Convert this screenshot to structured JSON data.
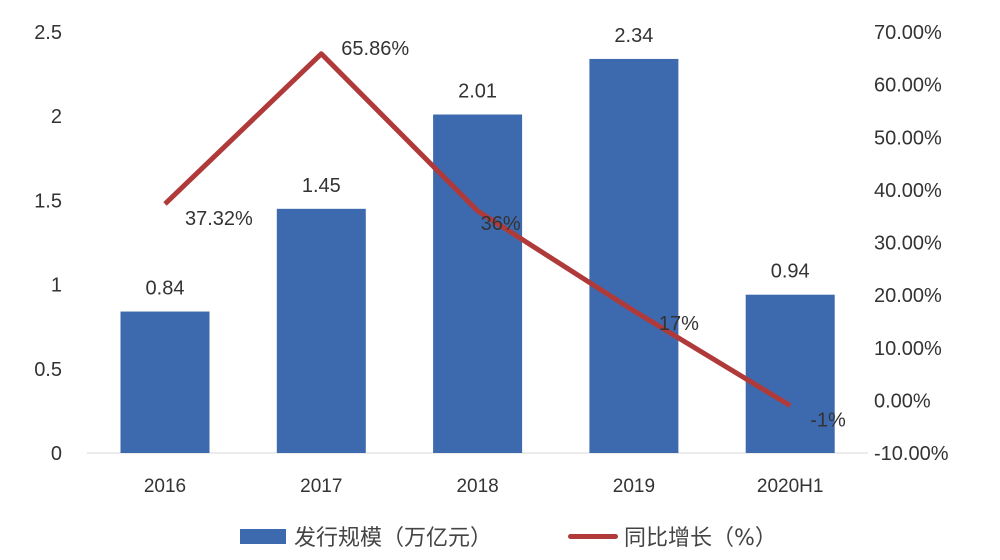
{
  "chart_data": {
    "type": "bar+line",
    "categories": [
      "2016",
      "2017",
      "2018",
      "2019",
      "2020H1"
    ],
    "series": [
      {
        "name": "发行规模（万亿元）",
        "type": "bar",
        "axis": "left",
        "values": [
          0.84,
          1.45,
          2.01,
          2.34,
          0.94
        ],
        "labels": [
          "0.84",
          "1.45",
          "2.01",
          "2.34",
          "0.94"
        ],
        "color": "#3D6AAE"
      },
      {
        "name": "同比增长（%）",
        "type": "line",
        "axis": "right",
        "values": [
          37.32,
          65.86,
          36,
          17,
          -1
        ],
        "labels": [
          "37.32%",
          "65.86%",
          "36%",
          "17%",
          "-1%"
        ],
        "color": "#B03A3A"
      }
    ],
    "left_axis": {
      "ylim": [
        0,
        2.5
      ],
      "ticks": [
        "0",
        "0.5",
        "1",
        "1.5",
        "2",
        "2.5"
      ]
    },
    "right_axis": {
      "ylim": [
        -10,
        70
      ],
      "ticks": [
        "-10.00%",
        "0.00%",
        "10.00%",
        "20.00%",
        "30.00%",
        "40.00%",
        "50.00%",
        "60.00%",
        "70.00%"
      ]
    },
    "grid": false,
    "legend": "bottom"
  }
}
